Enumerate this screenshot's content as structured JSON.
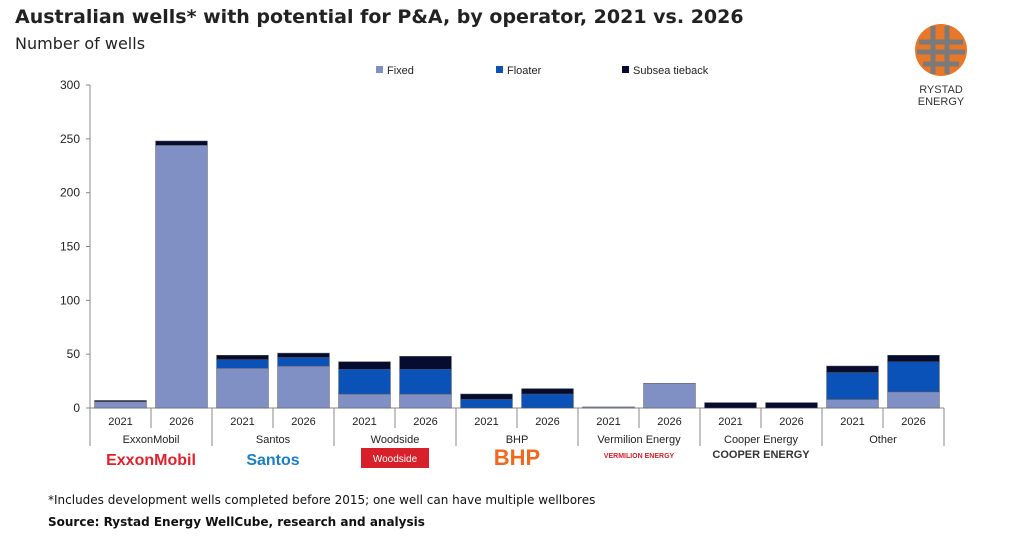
{
  "title": "Australian wells* with potential for P&A, by operator, 2021 vs. 2026",
  "subtitle": "Number of wells",
  "logo_text": "RYSTAD ENERGY",
  "footnote": "*Includes development wells completed before 2015; one well can have multiple wellbores",
  "source": "Source: Rystad Energy WellCube, research and analysis",
  "chart_data": {
    "type": "bar",
    "stacked": true,
    "ylim": [
      0,
      300
    ],
    "yticks": [
      0,
      50,
      100,
      150,
      200,
      250,
      300
    ],
    "legend_position": "top",
    "groups": [
      "ExxonMobil",
      "Santos",
      "Woodside",
      "BHP",
      "Vermilion Energy",
      "Cooper Energy",
      "Other"
    ],
    "years": [
      "2021",
      "2026"
    ],
    "series": [
      {
        "name": "Fixed",
        "color": "#8090c4",
        "values": [
          6,
          244,
          37,
          39,
          13,
          13,
          0,
          0,
          1,
          23,
          0,
          0,
          8,
          15
        ]
      },
      {
        "name": "Floater",
        "color": "#0a52b8",
        "values": [
          0,
          0,
          8,
          8,
          23,
          23,
          8,
          13,
          0,
          0,
          0,
          0,
          25,
          28
        ]
      },
      {
        "name": "Subsea tieback",
        "color": "#050c30",
        "values": [
          1,
          4,
          4,
          4,
          7,
          12,
          5,
          5,
          0,
          0,
          5,
          5,
          6,
          6
        ]
      }
    ]
  },
  "operator_logos": [
    "ExxonMobil",
    "Santos",
    "Woodside",
    "BHP",
    "VERMILION ENERGY",
    "COOPER ENERGY",
    ""
  ]
}
